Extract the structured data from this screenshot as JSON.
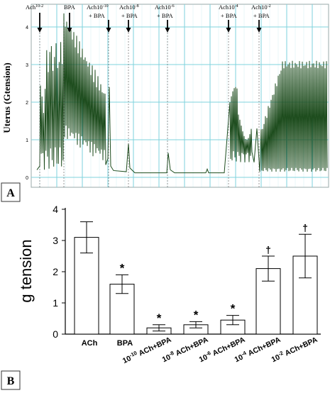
{
  "chart_data": [
    {
      "type": "line",
      "panel_label": "A",
      "ylabel": "Uterus (Gtension)",
      "ylim": [
        0,
        4.5
      ],
      "y_ticks": [
        0,
        1,
        2,
        3,
        4
      ],
      "grid": true,
      "line_color": "#1e4d1e",
      "grid_color": "#7fd3dc",
      "annotations": [
        {
          "base": "Ach",
          "exp": "10-2",
          "suffix": ""
        },
        {
          "base": "BPA",
          "exp": "",
          "suffix": ""
        },
        {
          "base": "Ach10",
          "exp": "-10",
          "suffix": "+ BPA"
        },
        {
          "base": "Ach10",
          "exp": "-8",
          "suffix": "+ BPA"
        },
        {
          "base": "Ach10",
          "exp": "-6",
          "suffix": "+ BPA"
        },
        {
          "base": "Ach10",
          "exp": "-4",
          "suffix": "+ BPA"
        },
        {
          "base": "Ach10",
          "exp": "-2",
          "suffix": "+ BPA"
        }
      ]
    },
    {
      "type": "bar",
      "panel_label": "B",
      "ylabel": "g tension",
      "ylim": [
        0,
        4
      ],
      "y_ticks": [
        0,
        1,
        2,
        3,
        4
      ],
      "categories": [
        {
          "base": "ACh",
          "exp": "",
          "rest": ""
        },
        {
          "base": "BPA",
          "exp": "",
          "rest": ""
        },
        {
          "base": "10",
          "exp": "-10",
          "rest": " ACh+BPA"
        },
        {
          "base": "10",
          "exp": "-8",
          "rest": " ACh+BPA"
        },
        {
          "base": "10",
          "exp": "-6",
          "rest": " ACh+BPA"
        },
        {
          "base": "10",
          "exp": "-4",
          "rest": " ACh+BPA"
        },
        {
          "base": "10",
          "exp": "-2",
          "rest": " ACh+BPA"
        }
      ],
      "values": [
        3.1,
        1.6,
        0.2,
        0.3,
        0.45,
        2.1,
        2.5
      ],
      "errors": [
        0.5,
        0.3,
        0.1,
        0.1,
        0.15,
        0.4,
        0.7
      ],
      "significance": [
        "",
        "*",
        "*",
        "*",
        "*",
        "†",
        "†"
      ]
    }
  ]
}
